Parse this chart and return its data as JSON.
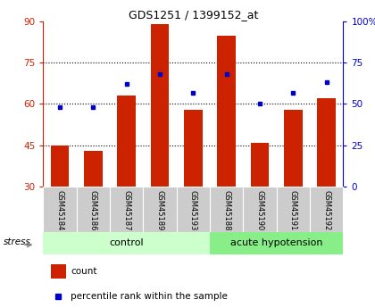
{
  "title": "GDS1251 / 1399152_at",
  "samples": [
    "GSM45184",
    "GSM45186",
    "GSM45187",
    "GSM45189",
    "GSM45193",
    "GSM45188",
    "GSM45190",
    "GSM45191",
    "GSM45192"
  ],
  "counts": [
    45,
    43,
    63,
    89,
    58,
    85,
    46,
    58,
    62
  ],
  "percentiles": [
    48,
    48,
    62,
    68,
    57,
    68,
    50,
    57,
    63
  ],
  "groups": [
    "control",
    "control",
    "control",
    "control",
    "control",
    "acute hypotension",
    "acute hypotension",
    "acute hypotension",
    "acute hypotension"
  ],
  "bar_bottom": 30,
  "ylim_left": [
    30,
    90
  ],
  "ylim_right": [
    0,
    100
  ],
  "yticks_left": [
    30,
    45,
    60,
    75,
    90
  ],
  "yticks_right": [
    0,
    25,
    50,
    75,
    100
  ],
  "ytick_labels_right": [
    "0",
    "25",
    "50",
    "75",
    "100%"
  ],
  "bar_color": "#cc2200",
  "dot_color": "#0000cc",
  "control_color": "#ccffcc",
  "hypotension_color": "#88ee88",
  "tick_bg_color": "#cccccc",
  "left_axis_color": "#cc2200",
  "right_axis_color": "#0000cc",
  "grid_color": "#000000",
  "stress_arrow_color": "#888888"
}
